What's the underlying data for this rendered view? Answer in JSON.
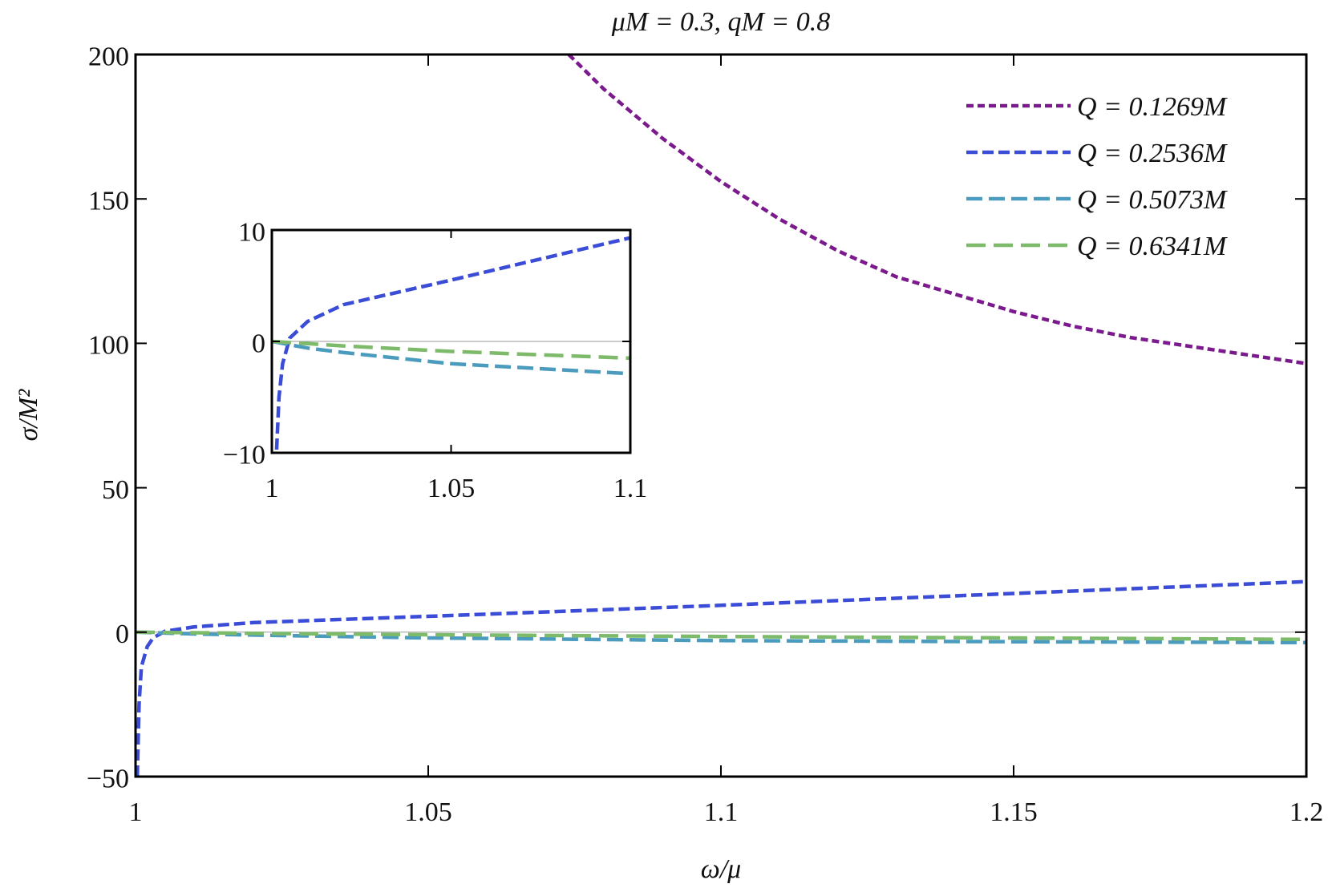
{
  "chart_data": [
    {
      "type": "line",
      "title": "μM = 0.3, qM = 0.8",
      "xlabel": "ω/μ",
      "ylabel": "σ/M²",
      "xlim": [
        1,
        1.2
      ],
      "ylim": [
        -50,
        200
      ],
      "xticks": [
        "1",
        "1.05",
        "1.1",
        "1.15",
        "1.2"
      ],
      "yticks": [
        "−50",
        "0",
        "50",
        "100",
        "150",
        "200"
      ],
      "legend_position": "top-right",
      "grid": false,
      "series": [
        {
          "name": "Q = 0.1269M",
          "color": "#7b1a8c",
          "dash": "short",
          "x": [
            1.074,
            1.08,
            1.09,
            1.1,
            1.11,
            1.12,
            1.13,
            1.14,
            1.15,
            1.16,
            1.17,
            1.18,
            1.19,
            1.2
          ],
          "y": [
            200,
            188,
            171,
            156,
            143,
            132,
            123,
            117,
            111,
            106,
            102,
            99,
            96,
            93
          ]
        },
        {
          "name": "Q = 0.2536M",
          "color": "#3b4cd6",
          "dash": "medium",
          "x": [
            1.0003,
            1.0006,
            1.001,
            1.002,
            1.003,
            1.005,
            1.01,
            1.02,
            1.05,
            1.1,
            1.15,
            1.2
          ],
          "y": [
            -50,
            -25,
            -12,
            -5,
            -2,
            0.3,
            1.8,
            3.3,
            5.5,
            9.3,
            13.4,
            17.5
          ]
        },
        {
          "name": "Q = 0.5073M",
          "color": "#4a9bbd",
          "dash": "long",
          "x": [
            1,
            1.01,
            1.02,
            1.05,
            1.1,
            1.15,
            1.2
          ],
          "y": [
            0,
            -0.6,
            -1.0,
            -2.0,
            -2.9,
            -3.3,
            -3.6
          ]
        },
        {
          "name": "Q = 0.6341M",
          "color": "#7dbb6a",
          "dash": "longer",
          "x": [
            1,
            1.01,
            1.02,
            1.05,
            1.1,
            1.15,
            1.2
          ],
          "y": [
            0,
            -0.2,
            -0.4,
            -0.9,
            -1.5,
            -2.0,
            -2.5
          ]
        }
      ]
    },
    {
      "type": "line",
      "xlim": [
        1,
        1.1
      ],
      "ylim": [
        -10,
        10
      ],
      "xticks": [
        "1",
        "1.05",
        "1.1"
      ],
      "yticks": [
        "−10",
        "0",
        "10"
      ],
      "series_ref": "same as main, zoomed inset"
    }
  ]
}
